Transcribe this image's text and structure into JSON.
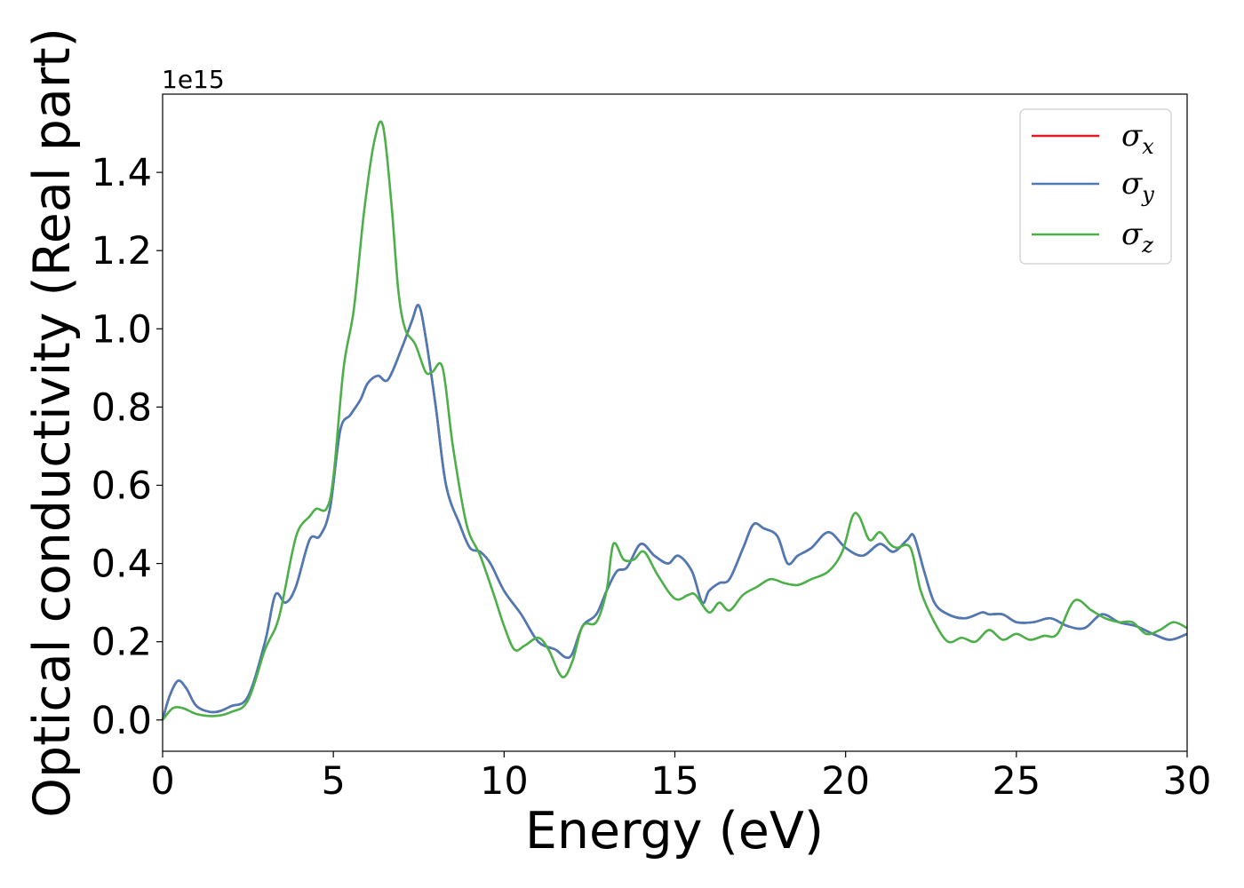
{
  "chart_data": {
    "type": "line",
    "xlabel": "Energy (eV)",
    "ylabel": "Optical conductivity (Real part)",
    "y_offset_text": "1e15",
    "xlim": [
      0,
      30
    ],
    "ylim": [
      -0.08,
      1.6
    ],
    "x_ticks": [
      0,
      5,
      10,
      15,
      20,
      25,
      30
    ],
    "y_ticks": [
      0.0,
      0.2,
      0.4,
      0.6,
      0.8,
      1.0,
      1.2,
      1.4
    ],
    "x_tick_labels": [
      "0",
      "5",
      "10",
      "15",
      "20",
      "25",
      "30"
    ],
    "y_tick_labels": [
      "0.0",
      "0.2",
      "0.4",
      "0.6",
      "0.8",
      "1.0",
      "1.2",
      "1.4"
    ],
    "grid": false,
    "legend_position": "top-right",
    "series": [
      {
        "name": "σx",
        "symbol": "σ",
        "subscript": "x",
        "color": "#e41a1c",
        "x": [
          0,
          0.2,
          0.45,
          0.7,
          1.0,
          1.5,
          2.0,
          2.5,
          3.0,
          3.3,
          3.6,
          3.9,
          4.3,
          4.6,
          4.9,
          5.2,
          5.5,
          5.8,
          6.0,
          6.3,
          6.6,
          7.0,
          7.3,
          7.5,
          7.7,
          8.0,
          8.3,
          8.7,
          9.0,
          9.3,
          9.6,
          10.0,
          10.5,
          11.0,
          11.5,
          11.8,
          12.0,
          12.3,
          12.7,
          13.0,
          13.3,
          13.6,
          14.0,
          14.4,
          14.8,
          15.1,
          15.5,
          15.8,
          16.0,
          16.3,
          16.6,
          17.0,
          17.3,
          17.6,
          18.0,
          18.3,
          18.6,
          19.0,
          19.5,
          20.0,
          20.5,
          21.0,
          21.4,
          21.8,
          22.0,
          22.3,
          22.6,
          23.0,
          23.5,
          24.0,
          24.2,
          24.6,
          25.0,
          25.5,
          26.0,
          26.5,
          27.0,
          27.5,
          28.0,
          28.5,
          29.0,
          29.5,
          30.0
        ],
        "y": [
          0.0,
          0.06,
          0.1,
          0.08,
          0.035,
          0.02,
          0.035,
          0.06,
          0.2,
          0.32,
          0.3,
          0.34,
          0.46,
          0.47,
          0.54,
          0.74,
          0.78,
          0.82,
          0.86,
          0.88,
          0.87,
          0.95,
          1.02,
          1.06,
          0.98,
          0.8,
          0.6,
          0.5,
          0.44,
          0.43,
          0.4,
          0.33,
          0.27,
          0.2,
          0.18,
          0.16,
          0.17,
          0.24,
          0.27,
          0.33,
          0.38,
          0.39,
          0.45,
          0.42,
          0.4,
          0.42,
          0.38,
          0.3,
          0.33,
          0.35,
          0.36,
          0.44,
          0.5,
          0.49,
          0.47,
          0.4,
          0.42,
          0.44,
          0.48,
          0.44,
          0.42,
          0.45,
          0.43,
          0.46,
          0.47,
          0.38,
          0.3,
          0.27,
          0.26,
          0.275,
          0.27,
          0.27,
          0.25,
          0.25,
          0.26,
          0.24,
          0.235,
          0.27,
          0.25,
          0.24,
          0.22,
          0.205,
          0.22
        ]
      },
      {
        "name": "σy",
        "symbol": "σ",
        "subscript": "y",
        "color": "#4a7bb7",
        "x": [
          0,
          0.2,
          0.45,
          0.7,
          1.0,
          1.5,
          2.0,
          2.5,
          3.0,
          3.3,
          3.6,
          3.9,
          4.3,
          4.6,
          4.9,
          5.2,
          5.5,
          5.8,
          6.0,
          6.3,
          6.6,
          7.0,
          7.3,
          7.5,
          7.7,
          8.0,
          8.3,
          8.7,
          9.0,
          9.3,
          9.6,
          10.0,
          10.5,
          11.0,
          11.5,
          11.8,
          12.0,
          12.3,
          12.7,
          13.0,
          13.3,
          13.6,
          14.0,
          14.4,
          14.8,
          15.1,
          15.5,
          15.8,
          16.0,
          16.3,
          16.6,
          17.0,
          17.3,
          17.6,
          18.0,
          18.3,
          18.6,
          19.0,
          19.5,
          20.0,
          20.5,
          21.0,
          21.4,
          21.8,
          22.0,
          22.3,
          22.6,
          23.0,
          23.5,
          24.0,
          24.2,
          24.6,
          25.0,
          25.5,
          26.0,
          26.5,
          27.0,
          27.5,
          28.0,
          28.5,
          29.0,
          29.5,
          30.0
        ],
        "y": [
          0.0,
          0.06,
          0.1,
          0.08,
          0.035,
          0.02,
          0.035,
          0.06,
          0.2,
          0.32,
          0.3,
          0.34,
          0.46,
          0.47,
          0.54,
          0.74,
          0.78,
          0.82,
          0.86,
          0.88,
          0.87,
          0.95,
          1.02,
          1.06,
          0.98,
          0.8,
          0.6,
          0.5,
          0.44,
          0.43,
          0.4,
          0.33,
          0.27,
          0.2,
          0.18,
          0.16,
          0.17,
          0.24,
          0.27,
          0.33,
          0.38,
          0.39,
          0.45,
          0.42,
          0.4,
          0.42,
          0.38,
          0.3,
          0.33,
          0.35,
          0.36,
          0.44,
          0.5,
          0.49,
          0.47,
          0.4,
          0.42,
          0.44,
          0.48,
          0.44,
          0.42,
          0.45,
          0.43,
          0.46,
          0.47,
          0.38,
          0.3,
          0.27,
          0.26,
          0.275,
          0.27,
          0.27,
          0.25,
          0.25,
          0.26,
          0.24,
          0.235,
          0.27,
          0.25,
          0.24,
          0.22,
          0.205,
          0.22
        ]
      },
      {
        "name": "σz",
        "symbol": "σ",
        "subscript": "z",
        "color": "#4daf4a",
        "x": [
          0,
          0.3,
          0.6,
          1.0,
          1.5,
          2.0,
          2.5,
          3.0,
          3.4,
          3.8,
          4.0,
          4.3,
          4.5,
          4.8,
          5.0,
          5.3,
          5.6,
          5.9,
          6.2,
          6.45,
          6.7,
          6.9,
          7.1,
          7.4,
          7.7,
          7.9,
          8.2,
          8.5,
          8.9,
          9.3,
          9.7,
          10.0,
          10.3,
          10.6,
          11.0,
          11.3,
          11.7,
          12.0,
          12.3,
          12.7,
          13.0,
          13.2,
          13.5,
          13.8,
          14.1,
          14.5,
          15.0,
          15.4,
          15.6,
          16.0,
          16.3,
          16.6,
          17.0,
          17.4,
          17.8,
          18.2,
          18.6,
          19.0,
          19.5,
          19.9,
          20.2,
          20.4,
          20.7,
          21.0,
          21.3,
          21.5,
          21.9,
          22.2,
          22.6,
          23.0,
          23.4,
          23.8,
          24.2,
          24.6,
          25.0,
          25.4,
          25.8,
          26.2,
          26.7,
          27.2,
          27.6,
          28.0,
          28.4,
          28.8,
          29.2,
          29.6,
          30.0
        ],
        "y": [
          0.0,
          0.03,
          0.03,
          0.015,
          0.01,
          0.02,
          0.05,
          0.18,
          0.26,
          0.43,
          0.49,
          0.52,
          0.54,
          0.54,
          0.62,
          0.9,
          1.05,
          1.3,
          1.48,
          1.52,
          1.32,
          1.1,
          1.0,
          0.96,
          0.89,
          0.89,
          0.9,
          0.7,
          0.5,
          0.42,
          0.32,
          0.24,
          0.18,
          0.19,
          0.21,
          0.18,
          0.11,
          0.15,
          0.24,
          0.25,
          0.33,
          0.45,
          0.41,
          0.41,
          0.43,
          0.37,
          0.31,
          0.32,
          0.32,
          0.275,
          0.3,
          0.28,
          0.32,
          0.34,
          0.36,
          0.35,
          0.345,
          0.36,
          0.38,
          0.43,
          0.52,
          0.52,
          0.46,
          0.48,
          0.45,
          0.44,
          0.44,
          0.33,
          0.25,
          0.2,
          0.21,
          0.2,
          0.23,
          0.205,
          0.22,
          0.205,
          0.215,
          0.22,
          0.305,
          0.28,
          0.26,
          0.25,
          0.25,
          0.22,
          0.23,
          0.25,
          0.235
        ]
      }
    ]
  }
}
